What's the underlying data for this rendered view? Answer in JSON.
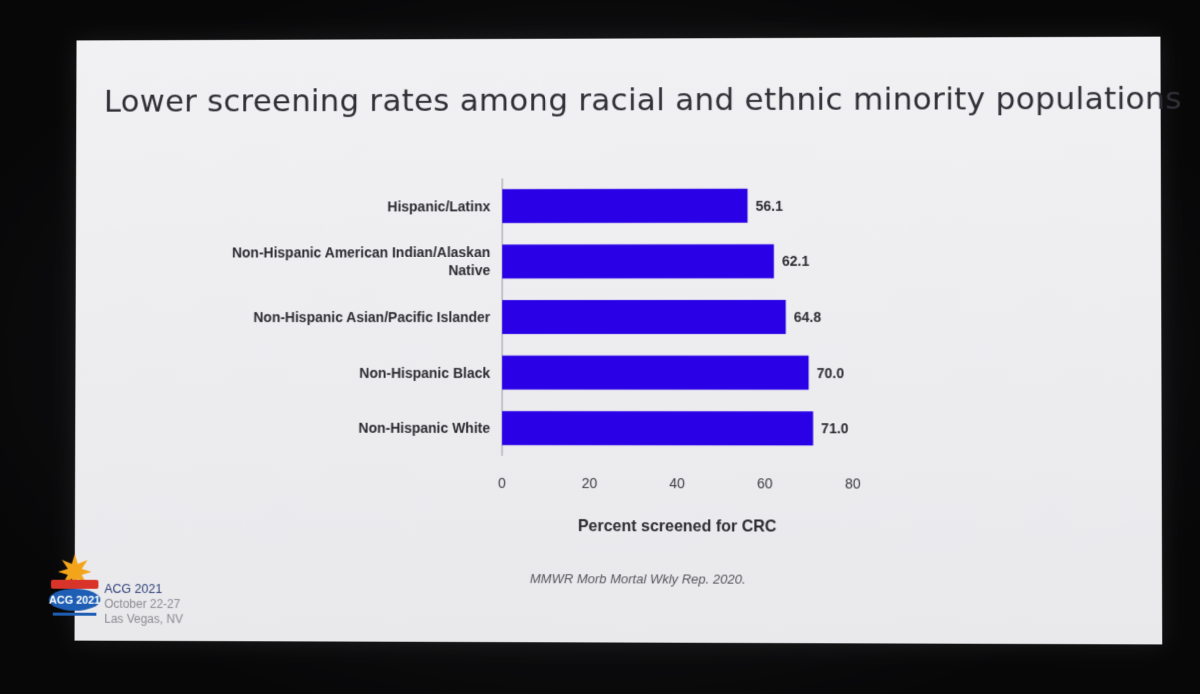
{
  "slide": {
    "title": "Lower screening rates among racial and ethnic minority populations",
    "citation": "MMWR Morb Mortal Wkly Rep. 2020.",
    "event": {
      "name": "ACG 2021",
      "dates": "October 22-27",
      "location": "Las Vegas, NV",
      "logo_text": "ACG 2021"
    }
  },
  "chart_data": {
    "type": "bar",
    "orientation": "horizontal",
    "categories": [
      "Hispanic/Latinx",
      "Non-Hispanic American Indian/Alaskan Native",
      "Non-Hispanic Asian/Pacific Islander",
      "Non-Hispanic Black",
      "Non-Hispanic White"
    ],
    "category_lines": [
      [
        "Hispanic/Latinx"
      ],
      [
        "Non-Hispanic American Indian/Alaskan",
        "Native"
      ],
      [
        "Non-Hispanic Asian/Pacific Islander"
      ],
      [
        "Non-Hispanic Black"
      ],
      [
        "Non-Hispanic White"
      ]
    ],
    "values": [
      56.1,
      62.1,
      64.8,
      70.0,
      71.0
    ],
    "value_labels": [
      "56.1",
      "62.1",
      "64.8",
      "70.0",
      "71.0"
    ],
    "xlabel": "Percent screened for CRC",
    "ylabel": "",
    "xlim": [
      0,
      80
    ],
    "xticks": [
      0,
      20,
      40,
      60,
      80
    ],
    "grid": false,
    "bar_color": "#2a00e6"
  }
}
